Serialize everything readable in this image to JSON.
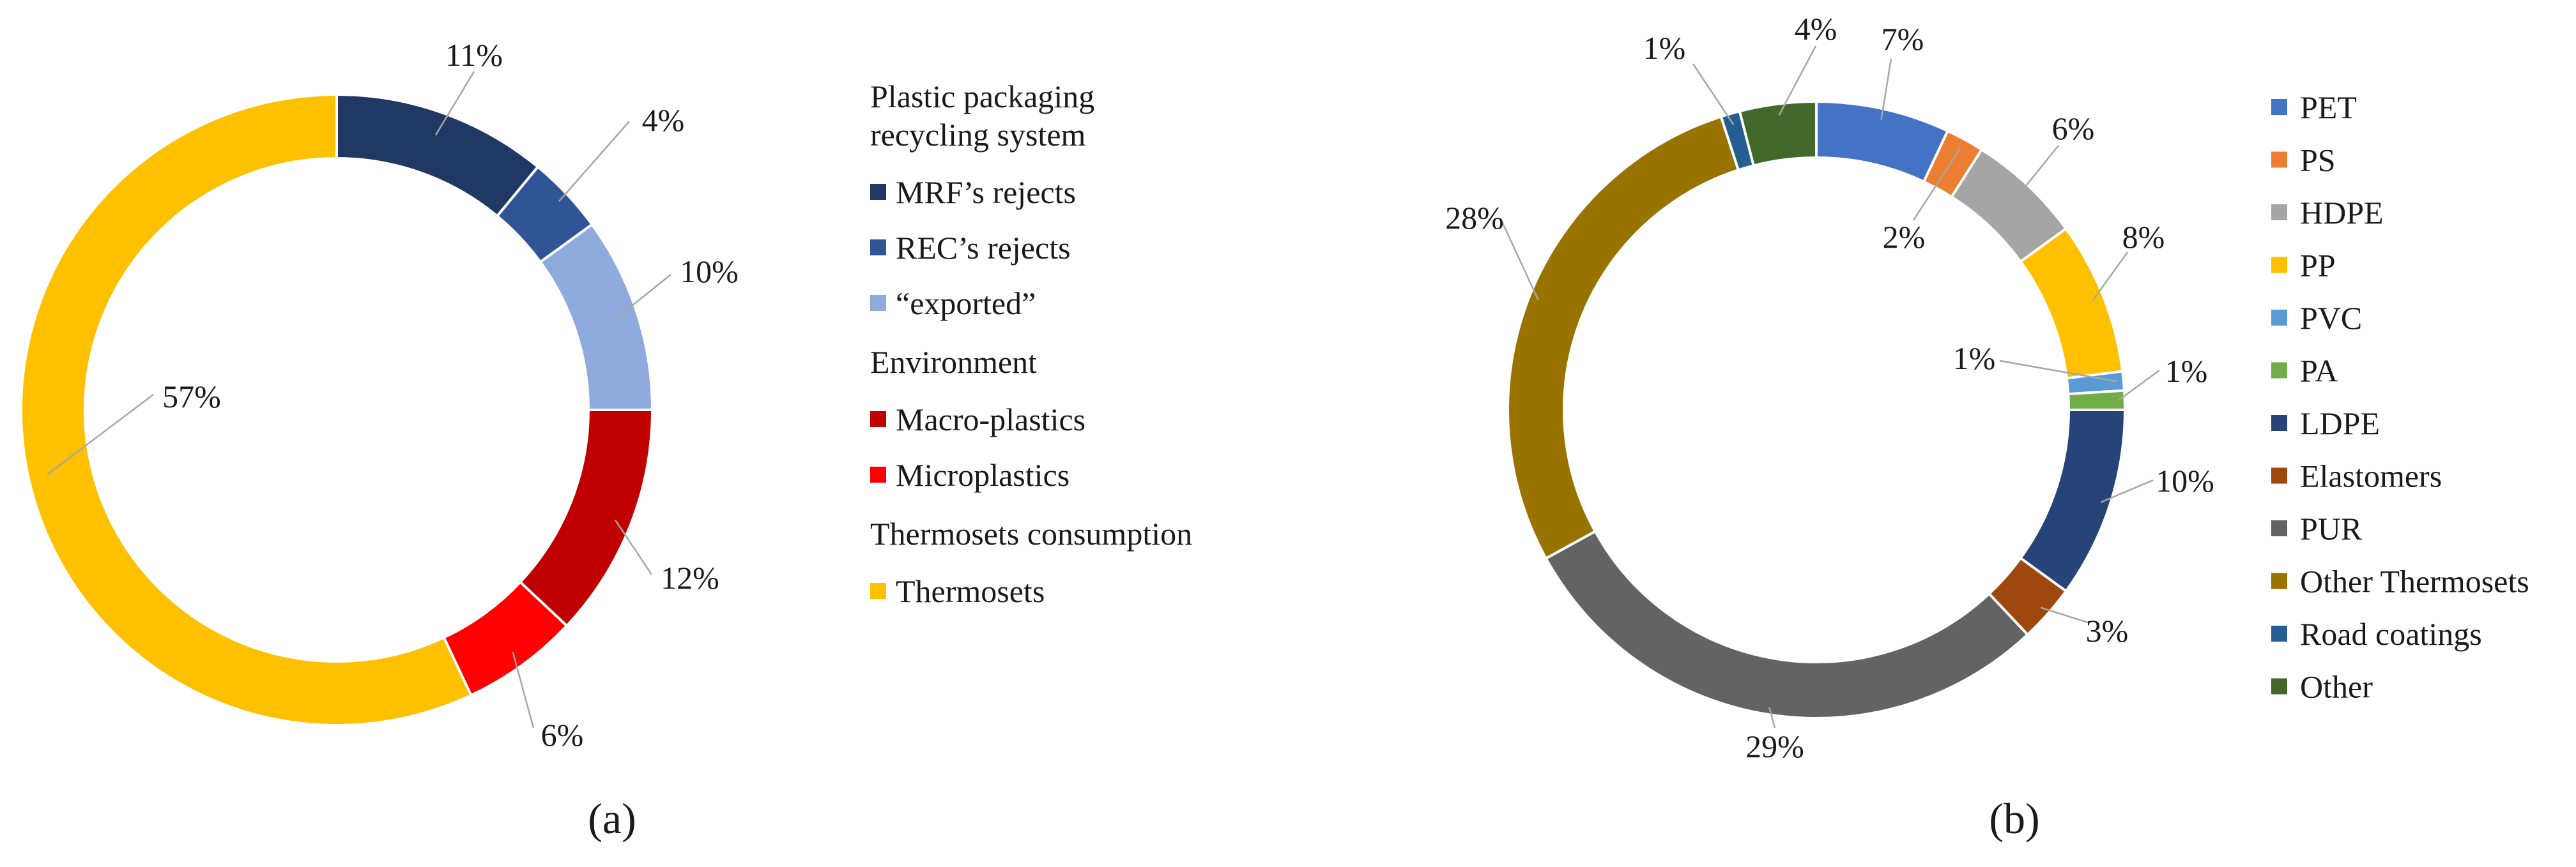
{
  "chart_data": [
    {
      "type": "pie",
      "panel_label": "(a)",
      "slices": [
        {
          "label": "MRF’s rejects",
          "value": 11,
          "value_label": "11%",
          "color": "#203864"
        },
        {
          "label": "REC’s rejects",
          "value": 4,
          "value_label": "4%",
          "color": "#2F5597"
        },
        {
          "label": "“exported”",
          "value": 10,
          "value_label": "10%",
          "color": "#8FAADC"
        },
        {
          "label": "Macro-plastics",
          "value": 12,
          "value_label": "12%",
          "color": "#C00000"
        },
        {
          "label": "Microplastics",
          "value": 6,
          "value_label": "6%",
          "color": "#FF0000"
        },
        {
          "label": "Thermosets",
          "value": 57,
          "value_label": "57%",
          "color": "#FFC000"
        }
      ],
      "legend_groups": [
        {
          "heading": "Plastic packaging recycling system",
          "heading_lines": [
            "Plastic packaging",
            "recycling system"
          ],
          "items": [
            0,
            1,
            2
          ]
        },
        {
          "heading": "Environment",
          "heading_lines": [
            "Environment"
          ],
          "items": [
            3,
            4
          ]
        },
        {
          "heading": "Thermosets consumption",
          "heading_lines": [
            "Thermosets consumption"
          ],
          "items": [
            5
          ]
        }
      ]
    },
    {
      "type": "pie",
      "panel_label": "(b)",
      "slices": [
        {
          "label": "PET",
          "value": 7,
          "value_label": "7%",
          "color": "#4472C4"
        },
        {
          "label": "PS",
          "value": 2,
          "value_label": "2%",
          "color": "#ED7D31"
        },
        {
          "label": "HDPE",
          "value": 6,
          "value_label": "6%",
          "color": "#A5A5A5"
        },
        {
          "label": "PP",
          "value": 8,
          "value_label": "8%",
          "color": "#FFC000"
        },
        {
          "label": "PVC",
          "value": 1,
          "value_label": "1%",
          "color": "#5B9BD5"
        },
        {
          "label": "PA",
          "value": 1,
          "value_label": "1%",
          "color": "#70AD47"
        },
        {
          "label": "LDPE",
          "value": 10,
          "value_label": "10%",
          "color": "#264478"
        },
        {
          "label": "Elastomers",
          "value": 3,
          "value_label": "3%",
          "color": "#9E480E"
        },
        {
          "label": "PUR",
          "value": 29,
          "value_label": "29%",
          "color": "#636363"
        },
        {
          "label": "Other Thermosets",
          "value": 28,
          "value_label": "28%",
          "color": "#997300"
        },
        {
          "label": "Road  coatings",
          "value": 1,
          "value_label": "1%",
          "color": "#255E91"
        },
        {
          "label": "Other",
          "value": 4,
          "value_label": "4%",
          "color": "#43682B"
        }
      ]
    }
  ]
}
